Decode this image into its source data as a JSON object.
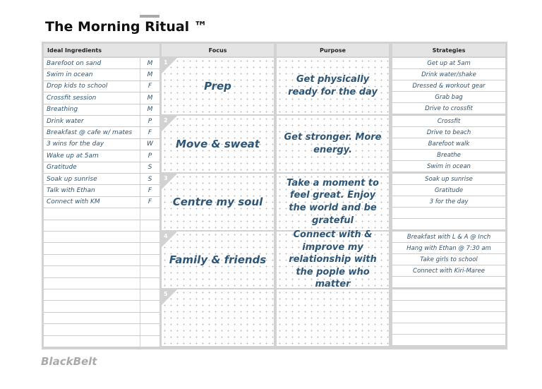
{
  "header": {
    "title": "The Morning Ritual ™"
  },
  "columns": {
    "ingredients": "Ideal Ingredients",
    "focus": "Focus",
    "purpose": "Purpose",
    "strategies": "Strategies"
  },
  "ingredients": [
    {
      "item": "Barefoot on sand",
      "code": "M"
    },
    {
      "item": "Swim in ocean",
      "code": "M"
    },
    {
      "item": "Drop kids to school",
      "code": "F"
    },
    {
      "item": "Crossfit session",
      "code": "M"
    },
    {
      "item": "Breathing",
      "code": "M"
    },
    {
      "item": "Drink water",
      "code": "P"
    },
    {
      "item": "Breakfast @ cafe w/ mates",
      "code": "F"
    },
    {
      "item": "3 wins for the day",
      "code": "W"
    },
    {
      "item": "Wake up at 5am",
      "code": "P"
    },
    {
      "item": "Gratitude",
      "code": "S"
    },
    {
      "item": "Soak up sunrise",
      "code": "S"
    },
    {
      "item": "Talk with Ethan",
      "code": "F"
    },
    {
      "item": "Connect with KM",
      "code": "F"
    }
  ],
  "sections": [
    {
      "number": "1",
      "focus": "Prep",
      "purpose": "Get physically ready for the day",
      "strategies": [
        "Get up at 5am",
        "Drink water/shake",
        "Dressed & workout gear",
        "Grab bag",
        "Drive to crossfit"
      ]
    },
    {
      "number": "2",
      "focus": "Move & sweat",
      "purpose": "Get stronger. More energy.",
      "strategies": [
        "Crossfit",
        "Drive to beach",
        "Barefoot walk",
        "Breathe",
        "Swim in ocean"
      ]
    },
    {
      "number": "3",
      "focus": "Centre my soul",
      "purpose": "Take a moment to feel great. Enjoy the world and be grateful",
      "strategies": [
        "Soak up sunrise",
        "Gratitude",
        "3 for the day"
      ]
    },
    {
      "number": "4",
      "focus": "Family & friends",
      "purpose": "Connect with & improve my relationship with the pople who matter",
      "strategies": [
        "Breakfast with L & A @ Inch",
        "Hang with Ethan @ 7:30 am",
        "Take girls to school",
        "Connect with Kiri-Maree"
      ]
    },
    {
      "number": "5",
      "strategies": []
    }
  ],
  "footer": {
    "logo": "BlackBelt"
  }
}
